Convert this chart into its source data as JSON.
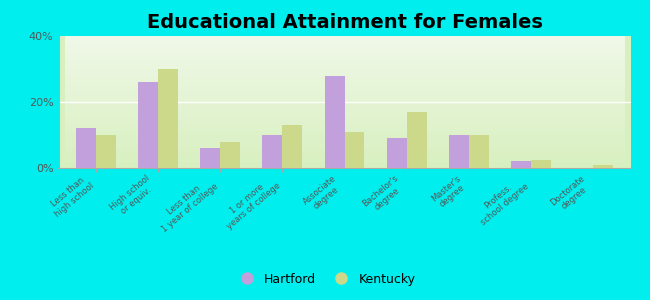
{
  "title": "Educational Attainment for Females",
  "categories": [
    "Less than\nhigh school",
    "High school\nor equiv.",
    "Less than\n1 year of college",
    "1 or more\nyears of college",
    "Associate\ndegree",
    "Bachelor's\ndegree",
    "Master's\ndegree",
    "Profess.\nschool degree",
    "Doctorate\ndegree"
  ],
  "hartford": [
    12.0,
    26.0,
    6.0,
    10.0,
    28.0,
    9.0,
    10.0,
    2.0,
    0.0
  ],
  "kentucky": [
    10.0,
    30.0,
    8.0,
    13.0,
    11.0,
    17.0,
    10.0,
    2.5,
    1.0
  ],
  "hartford_color": "#c2a0dc",
  "kentucky_color": "#ccd88a",
  "background_top": "#f0f8e8",
  "background_bottom": "#d8f0c0",
  "outer_background": "#00eeee",
  "title_fontsize": 14,
  "ylabel_ticks": [
    0,
    20,
    40
  ],
  "ylabel_labels": [
    "0%",
    "20%",
    "40%"
  ],
  "bar_width": 0.32,
  "legend_hartford": "Hartford",
  "legend_kentucky": "Kentucky"
}
